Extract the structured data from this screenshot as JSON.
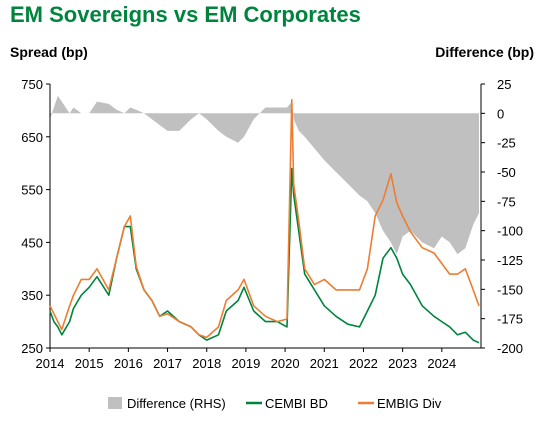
{
  "title": "EM Sovereigns vs EM Corporates",
  "chart_data": {
    "type": "line",
    "title": "EM Sovereigns vs EM Corporates",
    "ylabel_left": "Spread (bp)",
    "ylabel_right": "Difference (bp)",
    "xlim": [
      2014.0,
      2025.0
    ],
    "ylim_left": [
      250,
      750
    ],
    "ylim_right": [
      -200,
      25
    ],
    "x_ticks": [
      "2014",
      "2015",
      "2016",
      "2017",
      "2018",
      "2019",
      "2020",
      "2021",
      "2022",
      "2023",
      "2024"
    ],
    "y_left_ticks": [
      "750",
      "650",
      "550",
      "450",
      "350",
      "250"
    ],
    "y_right_ticks": [
      "25",
      "0",
      "-25",
      "-50",
      "-75",
      "-100",
      "-125",
      "-150",
      "-175",
      "-200"
    ],
    "legend_position": "bottom",
    "x": [
      2014.0,
      2014.1,
      2014.2,
      2014.3,
      2014.5,
      2014.6,
      2014.8,
      2015.0,
      2015.2,
      2015.5,
      2015.7,
      2015.9,
      2016.05,
      2016.2,
      2016.4,
      2016.6,
      2016.8,
      2017.0,
      2017.3,
      2017.6,
      2017.8,
      2018.0,
      2018.3,
      2018.5,
      2018.8,
      2018.95,
      2019.2,
      2019.5,
      2019.8,
      2020.05,
      2020.17,
      2020.22,
      2020.35,
      2020.5,
      2020.75,
      2021.0,
      2021.3,
      2021.6,
      2021.9,
      2022.1,
      2022.3,
      2022.5,
      2022.7,
      2022.85,
      2023.0,
      2023.2,
      2023.5,
      2023.8,
      2024.0,
      2024.2,
      2024.4,
      2024.6,
      2024.8,
      2024.95
    ],
    "series": [
      {
        "name": "Difference (RHS)",
        "color": "#c0c0c0",
        "values": [
          -5,
          5,
          15,
          10,
          0,
          5,
          0,
          0,
          10,
          8,
          3,
          0,
          5,
          3,
          0,
          -5,
          -10,
          -15,
          -15,
          -5,
          0,
          -5,
          -15,
          -20,
          -25,
          -20,
          -5,
          5,
          5,
          5,
          10,
          -5,
          -15,
          -20,
          -30,
          -40,
          -50,
          -60,
          -70,
          -75,
          -85,
          -100,
          -110,
          -120,
          -105,
          -100,
          -110,
          -115,
          -105,
          -110,
          -120,
          -115,
          -95,
          -85
        ]
      },
      {
        "name": "CEMBI BD",
        "color": "#00843d",
        "values": [
          320,
          300,
          290,
          275,
          300,
          325,
          350,
          365,
          385,
          350,
          420,
          480,
          480,
          400,
          360,
          340,
          310,
          320,
          300,
          290,
          275,
          265,
          275,
          320,
          340,
          365,
          320,
          300,
          300,
          290,
          590,
          540,
          470,
          390,
          360,
          330,
          310,
          295,
          290,
          320,
          350,
          420,
          440,
          420,
          390,
          370,
          330,
          310,
          300,
          290,
          275,
          280,
          265,
          260
        ]
      },
      {
        "name": "EMBIG Div",
        "color": "#ed7d31",
        "values": [
          330,
          315,
          300,
          285,
          330,
          350,
          380,
          380,
          400,
          360,
          420,
          480,
          500,
          405,
          360,
          340,
          310,
          315,
          300,
          290,
          275,
          270,
          290,
          340,
          360,
          380,
          330,
          310,
          300,
          305,
          720,
          560,
          490,
          400,
          370,
          380,
          360,
          360,
          360,
          400,
          500,
          530,
          580,
          525,
          500,
          470,
          440,
          430,
          410,
          390,
          390,
          400,
          360,
          330
        ]
      }
    ]
  }
}
